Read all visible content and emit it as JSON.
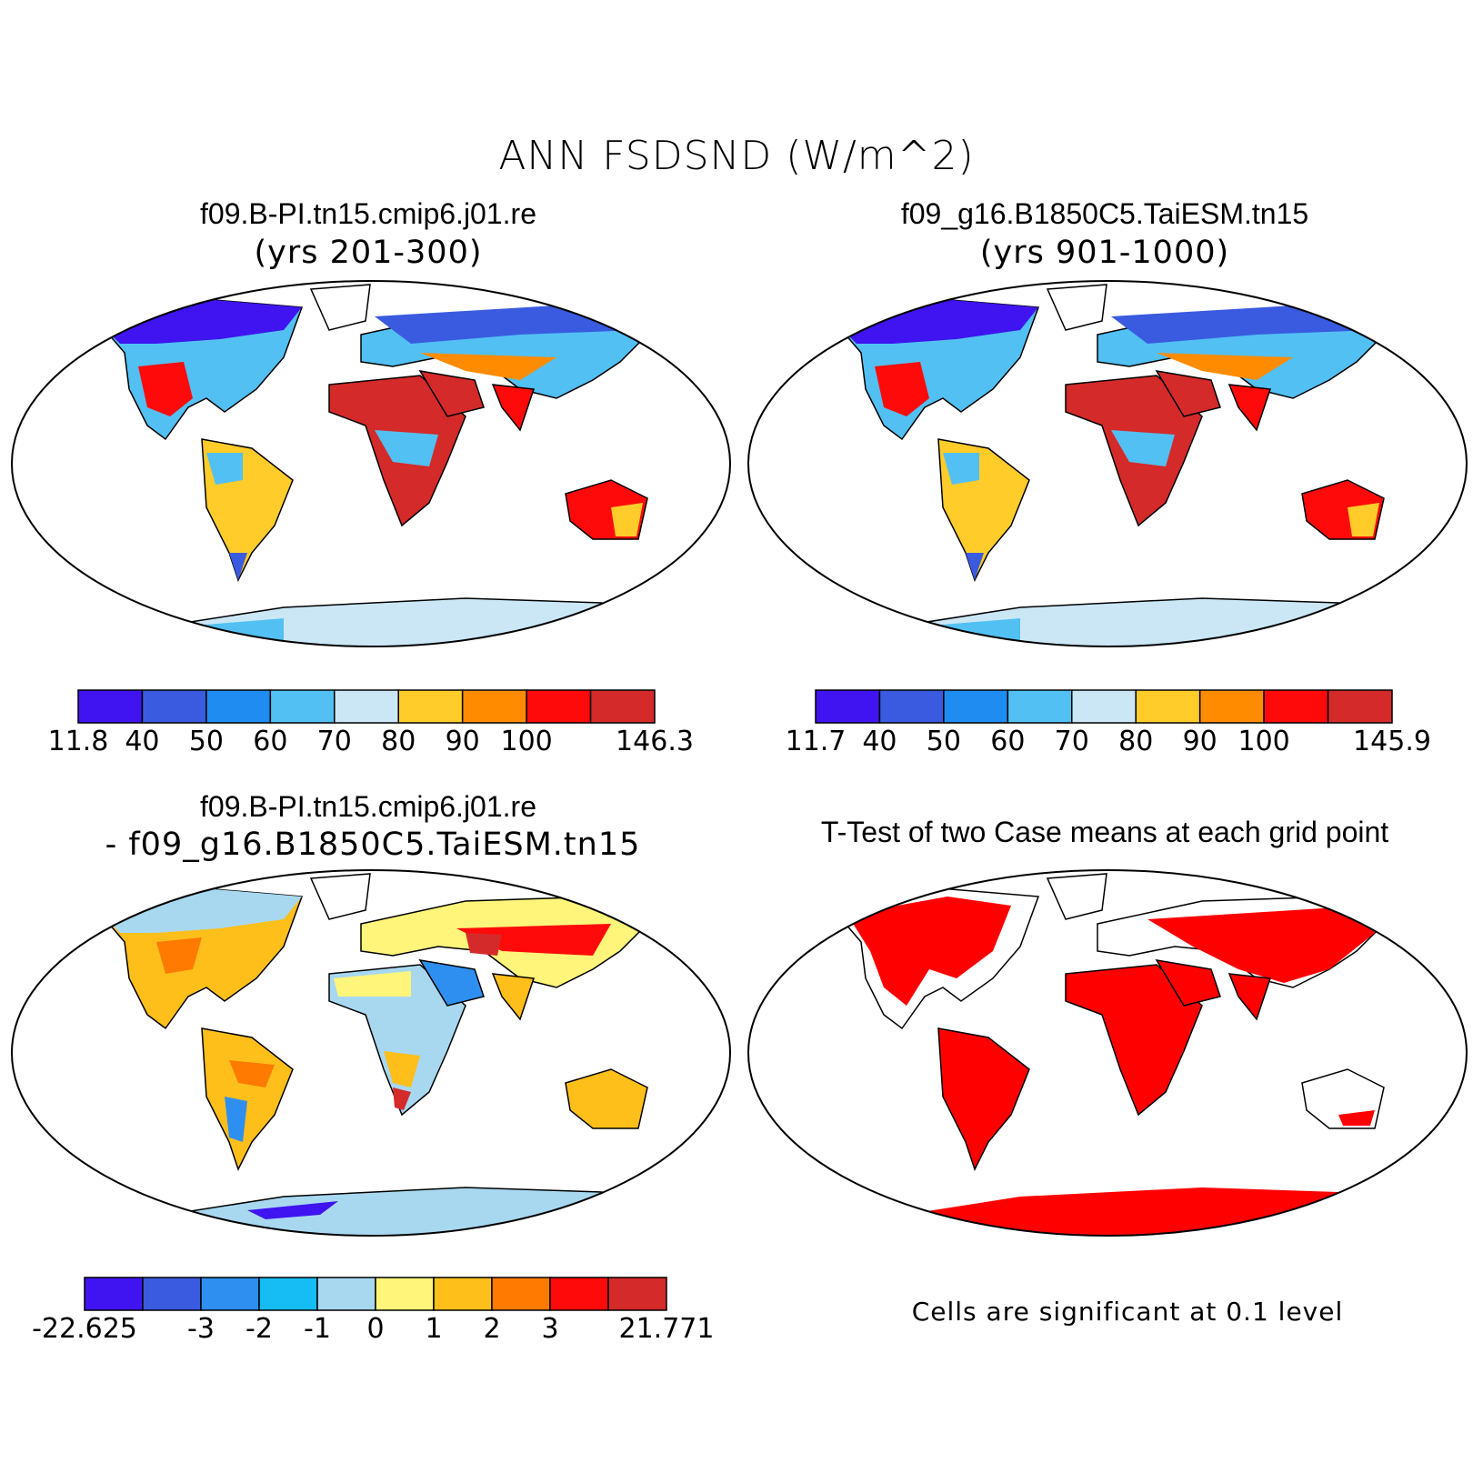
{
  "title": "ANN FSDSND (W/m^2)",
  "panels": [
    {
      "title": "f09.B-PI.tn15.cmip6.j01.re",
      "subtitle": "(yrs 201-300)",
      "colorbar": {
        "colors": [
          "#3f14f0",
          "#3a5be0",
          "#1e8cf0",
          "#52c0f3",
          "#cbe7f6",
          "#ffcc2a",
          "#ff8c00",
          "#ff0a0a",
          "#d42a2a"
        ],
        "tick_labels": [
          "11.8",
          "40",
          "50",
          "60",
          "70",
          "80",
          "90",
          "100",
          "146.3"
        ]
      }
    },
    {
      "title": "f09_g16.B1850C5.TaiESM.tn15",
      "subtitle": "(yrs 901-1000)",
      "colorbar": {
        "colors": [
          "#3f14f0",
          "#3a5be0",
          "#1e8cf0",
          "#52c0f3",
          "#cbe7f6",
          "#ffcc2a",
          "#ff8c00",
          "#ff0a0a",
          "#d42a2a"
        ],
        "tick_labels": [
          "11.7",
          "40",
          "50",
          "60",
          "70",
          "80",
          "90",
          "100",
          "145.9"
        ]
      }
    },
    {
      "title": "f09.B-PI.tn15.cmip6.j01.re",
      "subtitle": "- f09_g16.B1850C5.TaiESM.tn15",
      "colorbar": {
        "colors": [
          "#3f14f0",
          "#3a5be0",
          "#2e8ff0",
          "#16bdf5",
          "#a8d8f0",
          "#fff57a",
          "#ffbf1a",
          "#ff7a00",
          "#ff0a0a",
          "#d42a2a"
        ],
        "tick_labels": [
          "-22.625",
          "-3",
          "-2",
          "-1",
          "0",
          "1",
          "2",
          "3",
          "21.771"
        ]
      }
    },
    {
      "title": "T-Test of two Case means at each grid point",
      "note": "Cells are significant at 0.1 level",
      "colors": {
        "significant": "#ff0000"
      }
    }
  ]
}
